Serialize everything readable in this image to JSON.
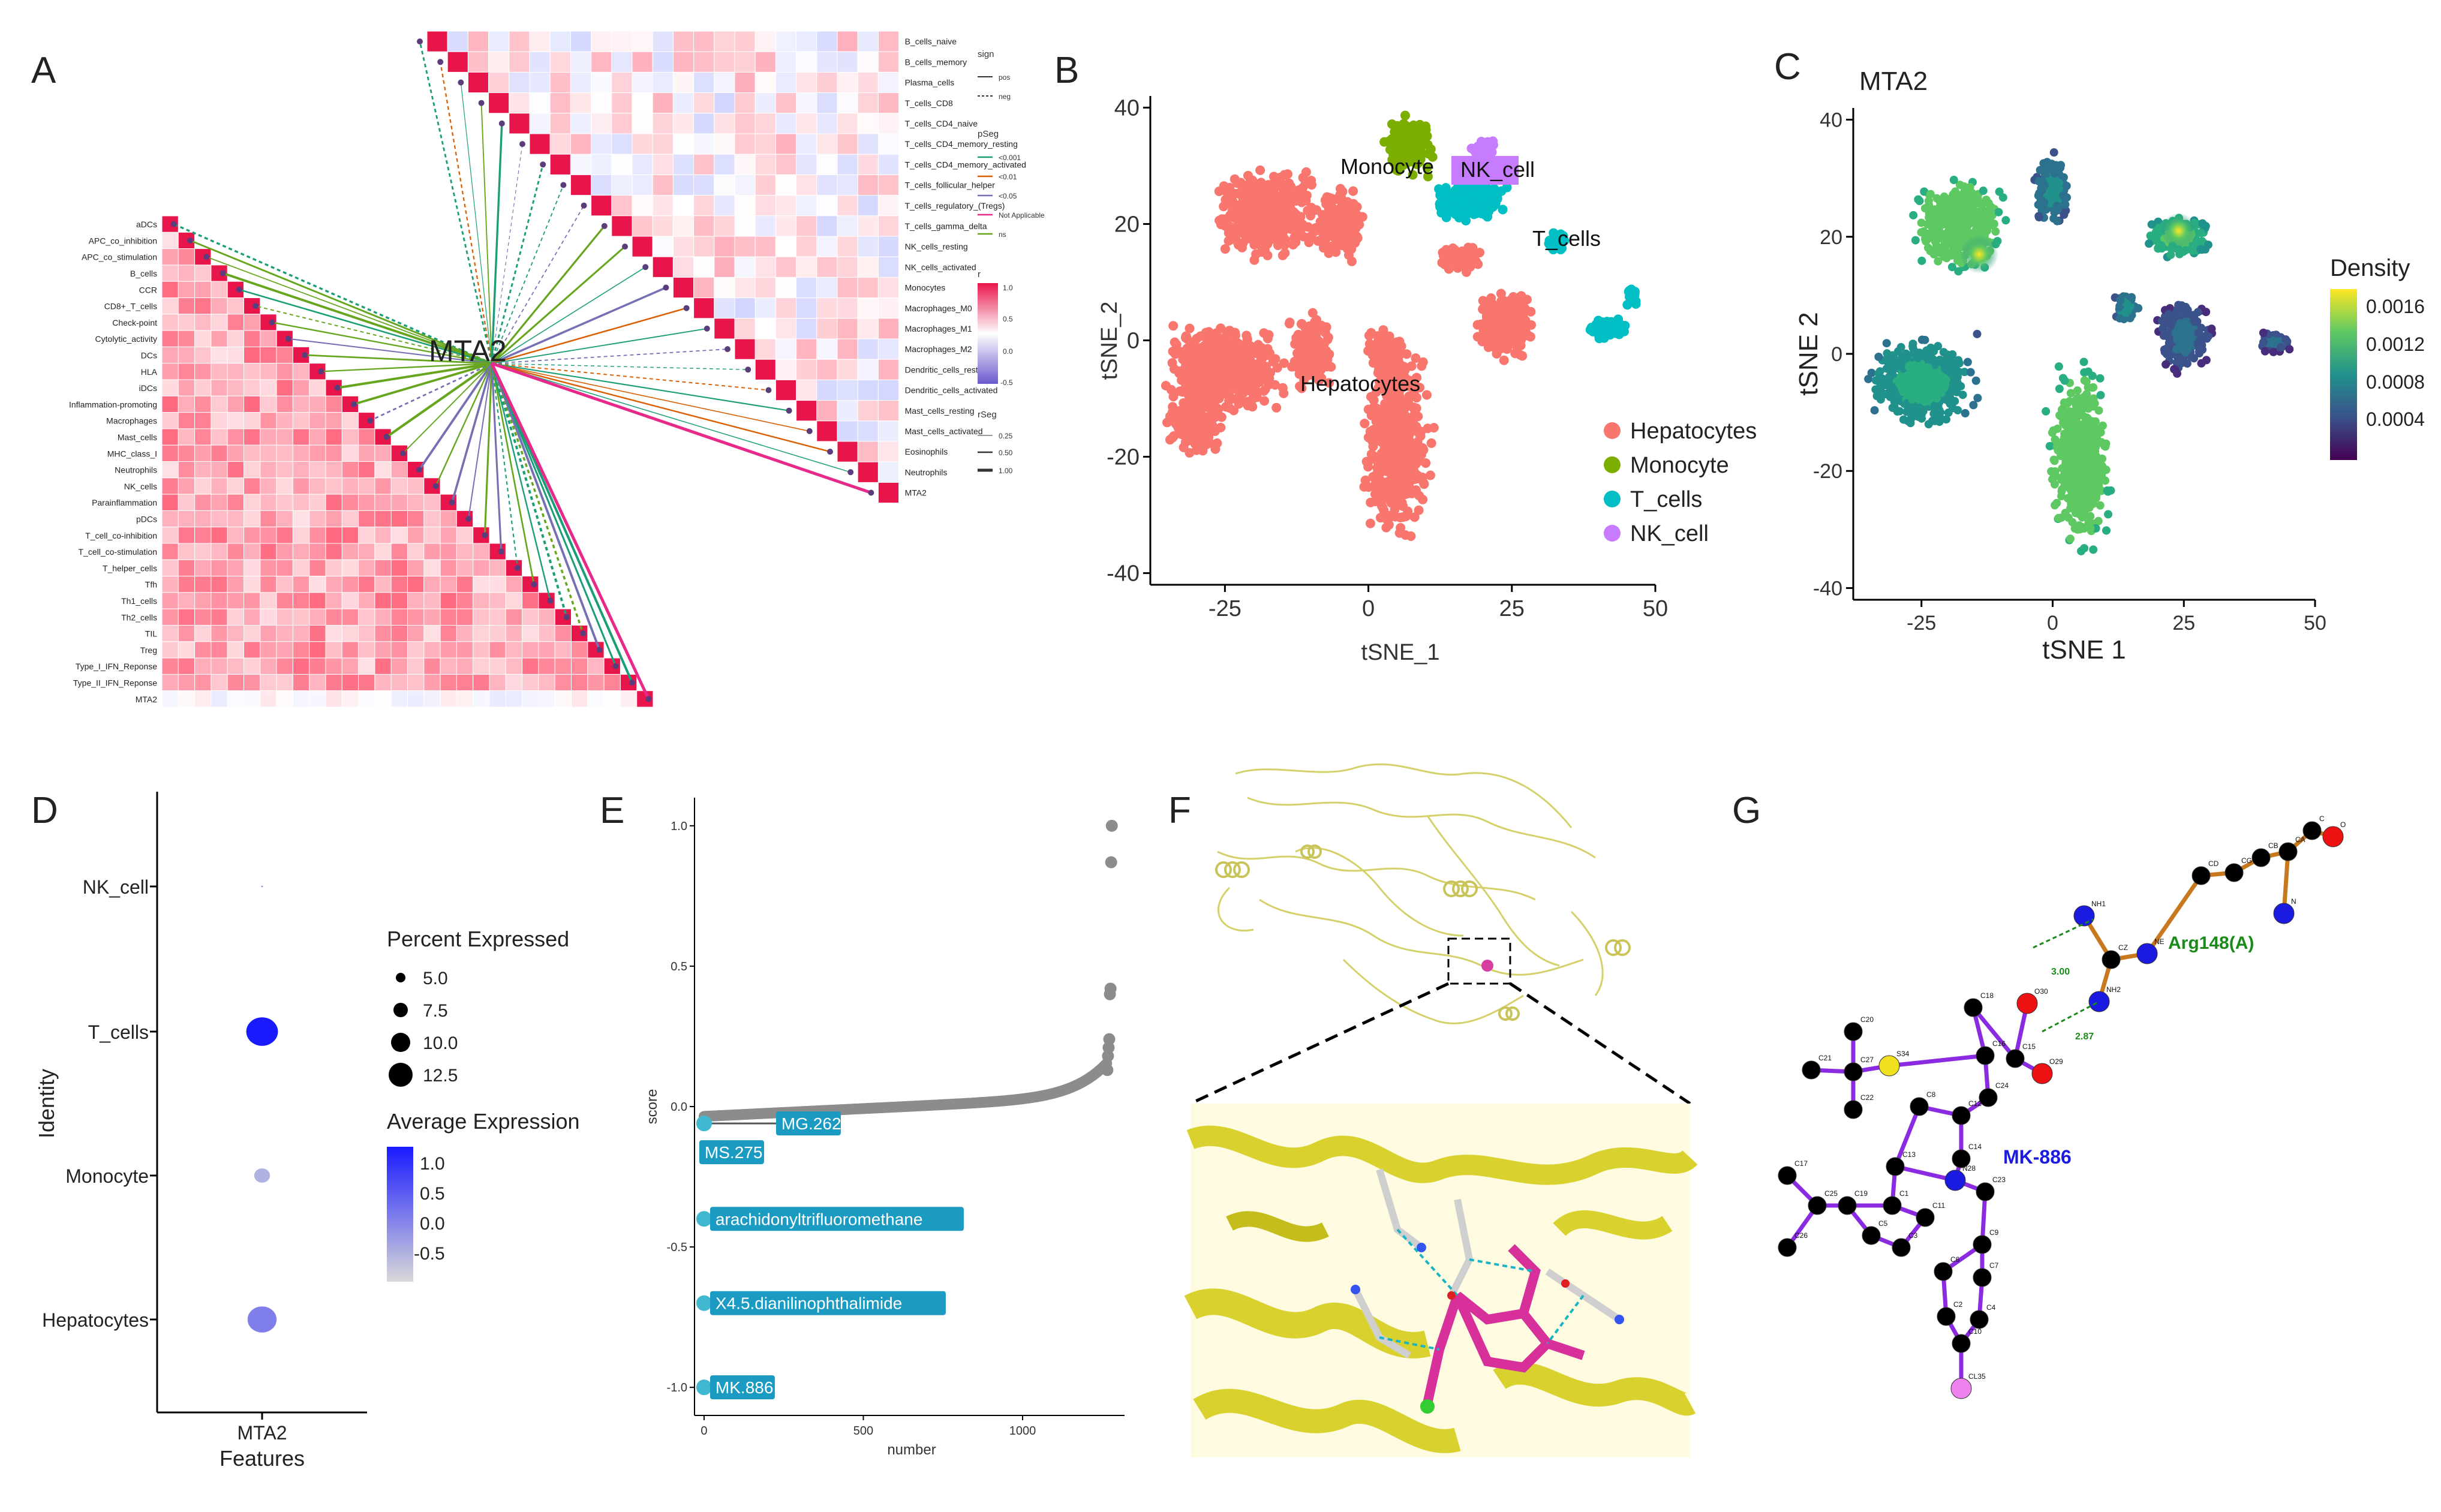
{
  "panels": {
    "A": {
      "letter": "A",
      "center_label": "MTA2",
      "left_features": [
        "aDCs",
        "APC_co_inhibition",
        "APC_co_stimulation",
        "B_cells",
        "CCR",
        "CD8+_T_cells",
        "Check-point",
        "Cytolytic_activity",
        "DCs",
        "HLA",
        "iDCs",
        "Inflammation-promoting",
        "Macrophages",
        "Mast_cells",
        "MHC_class_I",
        "Neutrophils",
        "NK_cells",
        "Parainflammation",
        "pDCs",
        "T_cell_co-inhibition",
        "T_cell_co-stimulation",
        "T_helper_cells",
        "Tfh",
        "Th1_cells",
        "Th2_cells",
        "TIL",
        "Treg",
        "Type_I_IFN_Reponse",
        "Type_II_IFN_Reponse",
        "MTA2"
      ],
      "right_features": [
        "B_cells_naive",
        "B_cells_memory",
        "Plasma_cells",
        "T_cells_CD8",
        "T_cells_CD4_naive",
        "T_cells_CD4_memory_resting",
        "T_cells_CD4_memory_activated",
        "T_cells_follicular_helper",
        "T_cells_regulatory_(Tregs)",
        "T_cells_gamma_delta",
        "NK_cells_resting",
        "NK_cells_activated",
        "Monocytes",
        "Macrophages_M0",
        "Macrophages_M1",
        "Macrophages_M2",
        "Dendritic_cells_resting",
        "Dendritic_cells_activated",
        "Mast_cells_resting",
        "Mast_cells_activated",
        "Eosinophils",
        "Neutrophils",
        "MTA2"
      ],
      "legend": {
        "sign_title": "sign",
        "sign_items": [
          "pos",
          "neg"
        ],
        "pseg_title": "pSeg",
        "pseg_items": [
          "<0.001",
          "<0.01",
          "<0.05",
          "Not Applicable",
          "ns"
        ],
        "pseg_colors": [
          "#1b9e77",
          "#d95f02",
          "#7570b3",
          "#e7298a",
          "#66a61e"
        ],
        "r_title": "r",
        "r_ticks": [
          "1.0",
          "0.5",
          "0.0",
          "-0.5"
        ],
        "rseg_title": "rSeg",
        "rseg_items": [
          "0.25",
          "0.50",
          "1.00"
        ]
      }
    },
    "B": {
      "letter": "B",
      "chart_data": {
        "type": "scatter",
        "xlabel": "tSNE_1",
        "ylabel": "tSNE_2",
        "xticks": [
          -25,
          0,
          25,
          50
        ],
        "yticks": [
          -40,
          -20,
          0,
          20,
          40
        ],
        "xlim": [
          -38,
          50
        ],
        "ylim": [
          -42,
          42
        ],
        "clusters": [
          {
            "name": "Hepatocytes",
            "color": "#F8766D"
          },
          {
            "name": "Monocyte",
            "color": "#7CAE00"
          },
          {
            "name": "T_cells",
            "color": "#00BFC4"
          },
          {
            "name": "NK_cell",
            "color": "#C77CFF"
          }
        ],
        "cluster_labels": [
          "Monocyte",
          "NK_cell",
          "T_cells",
          "Hepatocytes"
        ]
      }
    },
    "C": {
      "letter": "C",
      "chart_data": {
        "type": "scatter",
        "title": "MTA2",
        "xlabel": "tSNE 1",
        "ylabel": "tSNE 2",
        "xticks": [
          -25,
          0,
          25,
          50
        ],
        "yticks": [
          -40,
          -20,
          0,
          20,
          40
        ],
        "xlim": [
          -38,
          50
        ],
        "ylim": [
          -42,
          42
        ],
        "legend_title": "Density",
        "legend_ticks": [
          "0.0016",
          "0.0012",
          "0.0008",
          "0.0004"
        ]
      }
    },
    "D": {
      "letter": "D",
      "chart_data": {
        "type": "scatter",
        "ylabel": "Identity",
        "xlabel": "Features",
        "categories_y": [
          "NK_cell",
          "T_cells",
          "Monocyte",
          "Hepatocytes"
        ],
        "categories_x": [
          "MTA2"
        ],
        "percent_expressed": [
          0.2,
          12.0,
          6.0,
          11.0
        ],
        "average_expression": [
          0.0,
          1.2,
          -0.3,
          0.2
        ],
        "size_legend_title": "Percent Expressed",
        "size_legend_items": [
          "5.0",
          "7.5",
          "10.0",
          "12.5"
        ],
        "color_legend_title": "Average Expression",
        "color_legend_ticks": [
          "1.0",
          "0.5",
          "0.0",
          "-0.5"
        ]
      }
    },
    "E": {
      "letter": "E",
      "chart_data": {
        "type": "scatter",
        "xlabel": "number",
        "ylabel": "score",
        "xticks": [
          0,
          500,
          1000
        ],
        "yticks": [
          1.0,
          0.5,
          0.0,
          -0.5,
          -1.0
        ],
        "xlim": [
          -30,
          1320
        ],
        "ylim": [
          -1.1,
          1.1
        ],
        "highlighted": [
          {
            "label": "MG.262",
            "x": 0,
            "y": -0.06
          },
          {
            "label": "MS.275",
            "x": 0,
            "y": -0.06
          },
          {
            "label": "arachidonyltrifluoromethane",
            "x": 0,
            "y": -0.4
          },
          {
            "label": "X4.5.dianilinophthalimide",
            "x": 0,
            "y": -0.7
          },
          {
            "label": "MK.886",
            "x": 0,
            "y": -1.0
          }
        ],
        "tail_points": [
          {
            "x": 1280,
            "y": 1.0
          },
          {
            "x": 1278,
            "y": 0.87
          },
          {
            "x": 1276,
            "y": 0.42
          },
          {
            "x": 1274,
            "y": 0.4
          },
          {
            "x": 1272,
            "y": 0.24
          },
          {
            "x": 1270,
            "y": 0.21
          },
          {
            "x": 1268,
            "y": 0.18
          },
          {
            "x": 1266,
            "y": 0.13
          }
        ]
      }
    },
    "F": {
      "letter": "F"
    },
    "G": {
      "letter": "G",
      "residue_label": "Arg148(A)",
      "ligand_label": "MK-886",
      "hbond_distances": [
        "3.00",
        "2.87"
      ],
      "atom_labels": [
        "C",
        "O",
        "CA",
        "CB",
        "CG",
        "CD",
        "N",
        "NH1",
        "NE",
        "CZ",
        "NH2",
        "O30",
        "O29",
        "C15",
        "C18",
        "C16",
        "C24",
        "C12",
        "C14",
        "C8",
        "C13",
        "C1",
        "C5",
        "C6",
        "C11",
        "C3",
        "C2",
        "C4",
        "C7",
        "C9",
        "C10",
        "C21",
        "C27",
        "C20",
        "C22",
        "C23",
        "C17",
        "C25",
        "C19",
        "C26",
        "S33",
        "N28",
        "CL35",
        "S34"
      ]
    }
  }
}
